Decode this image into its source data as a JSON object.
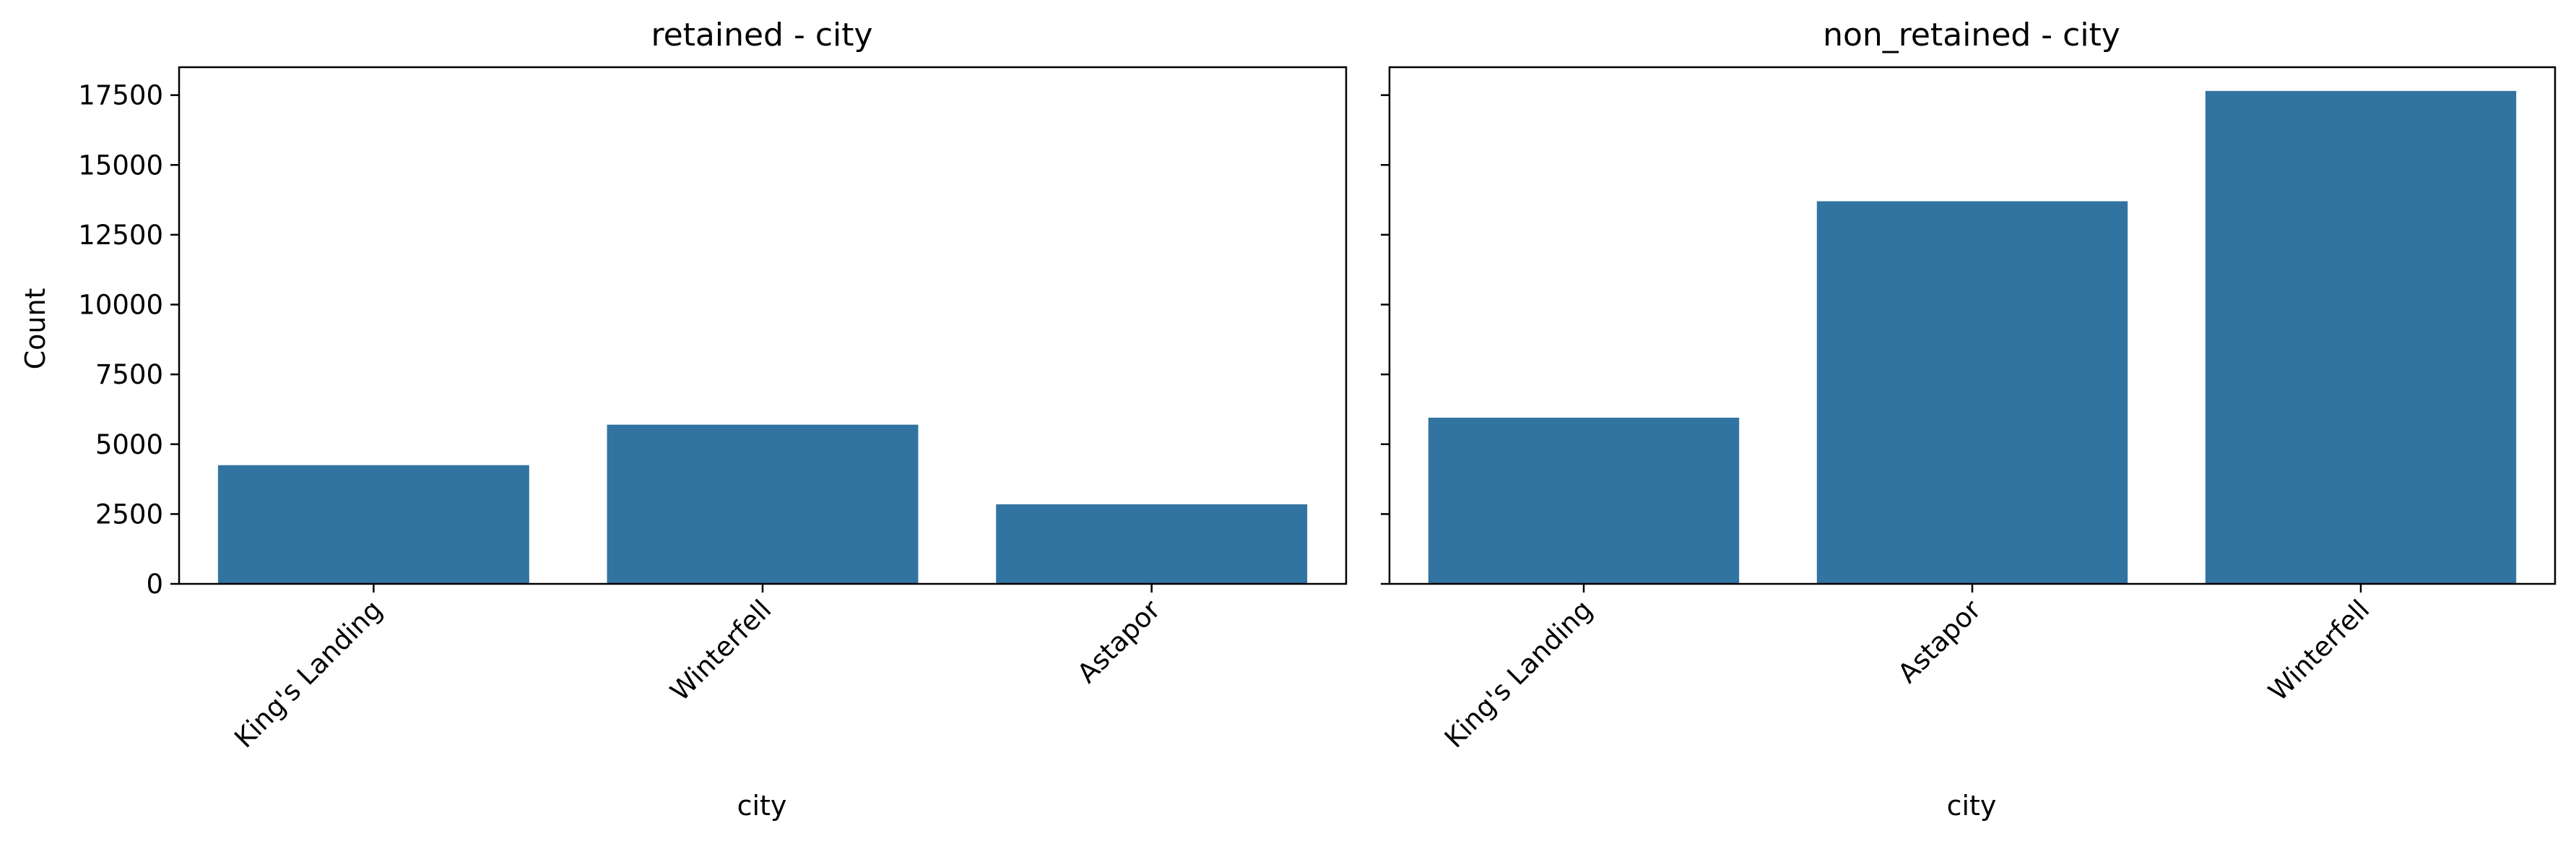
{
  "figure": {
    "bar_color": "#3274a1",
    "axis_color": "#000000",
    "background": "#ffffff"
  },
  "chart_data": [
    {
      "type": "bar",
      "title": "retained - city",
      "xlabel": "city",
      "ylabel": "Count",
      "categories": [
        "King's Landing",
        "Winterfell",
        "Astapor"
      ],
      "values": [
        4250,
        5700,
        2850
      ],
      "ylim": [
        0,
        18500
      ],
      "yticks": [
        0,
        2500,
        5000,
        7500,
        10000,
        12500,
        15000,
        17500
      ],
      "ytick_labels": [
        "0",
        "2500",
        "5000",
        "7500",
        "10000",
        "12500",
        "15000",
        "17500"
      ],
      "show_ytick_labels": true,
      "grid": false,
      "legend": "none"
    },
    {
      "type": "bar",
      "title": "non_retained - city",
      "xlabel": "city",
      "ylabel": "",
      "categories": [
        "King's Landing",
        "Astapor",
        "Winterfell"
      ],
      "values": [
        5950,
        13700,
        17650
      ],
      "ylim": [
        0,
        18500
      ],
      "yticks": [
        0,
        2500,
        5000,
        7500,
        10000,
        12500,
        15000,
        17500
      ],
      "ytick_labels": [],
      "show_ytick_labels": false,
      "grid": false,
      "legend": "none"
    }
  ]
}
